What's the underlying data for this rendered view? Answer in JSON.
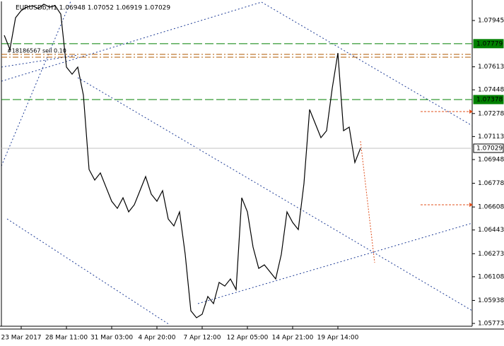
{
  "chart_data": {
    "type": "line",
    "title": "EURUSDb,H1 1.06948 1.07052 1.06919 1.07029",
    "annotation": "#18186567 sell 0.10",
    "categories": [
      null,
      null,
      null,
      "23 Mar 2017",
      null,
      null,
      null,
      null,
      null,
      null,
      null,
      "28 Mar 11:00",
      null,
      null,
      null,
      null,
      null,
      null,
      null,
      "31 Mar 03:00",
      null,
      null,
      null,
      null,
      null,
      null,
      null,
      "4 Apr 20:00",
      null,
      null,
      null,
      null,
      null,
      null,
      null,
      "7 Apr 12:00",
      null,
      null,
      null,
      null,
      null,
      null,
      null,
      "12 Apr 05:00",
      null,
      null,
      null,
      null,
      null,
      null,
      null,
      "14 Apr 21:00",
      null,
      null,
      null,
      null,
      null,
      null,
      null,
      "19 Apr 14:00",
      null,
      null,
      null,
      null
    ],
    "series": [
      {
        "name": "EURUSDb",
        "color": "#000000",
        "values": [
          1.07839,
          1.07738,
          1.07965,
          1.08016,
          1.08041,
          1.08051,
          1.08031,
          1.08062,
          1.08041,
          1.08051,
          1.07991,
          1.07611,
          1.0756,
          1.07611,
          1.07409,
          1.06877,
          1.06801,
          1.06852,
          1.0675,
          1.06649,
          1.06598,
          1.06674,
          1.06573,
          1.06624,
          1.06725,
          1.06826,
          1.067,
          1.06649,
          1.06725,
          1.06522,
          1.06472,
          1.06573,
          1.06269,
          1.05864,
          1.05814,
          1.05839,
          1.05966,
          1.05915,
          1.06067,
          1.06041,
          1.06092,
          1.06016,
          1.06674,
          1.06573,
          1.0632,
          1.06168,
          1.06193,
          1.06143,
          1.06092,
          1.06269,
          1.06573,
          1.06497,
          1.06446,
          1.06776,
          1.07307,
          1.07206,
          1.07105,
          1.07155,
          1.07459,
          1.07712,
          1.07155,
          1.07181,
          1.06927,
          1.07029
        ]
      }
    ],
    "ylim": [
      1.05753,
      1.08092
    ],
    "yticks": [
      1.07945,
      1.07613,
      1.07448,
      1.07278,
      1.07113,
      1.06948,
      1.06778,
      1.06608,
      1.06443,
      1.06273,
      1.06108,
      1.05938,
      1.05773
    ],
    "levels": [
      {
        "value": 1.07779,
        "color": "#008000",
        "style": "dash"
      },
      {
        "value": 1.07378,
        "color": "#008000",
        "style": "dash"
      },
      {
        "value": 1.07029,
        "color": "#c0c0c0",
        "style": "solid"
      }
    ],
    "orders": [
      {
        "value": 1.07702,
        "color": "#b05a00"
      },
      {
        "value": 1.07682,
        "color": "#b05a00"
      }
    ],
    "targets": [
      {
        "value": 1.07292,
        "color": "#e0501e"
      },
      {
        "value": 1.06624,
        "color": "#e0501e"
      }
    ]
  }
}
